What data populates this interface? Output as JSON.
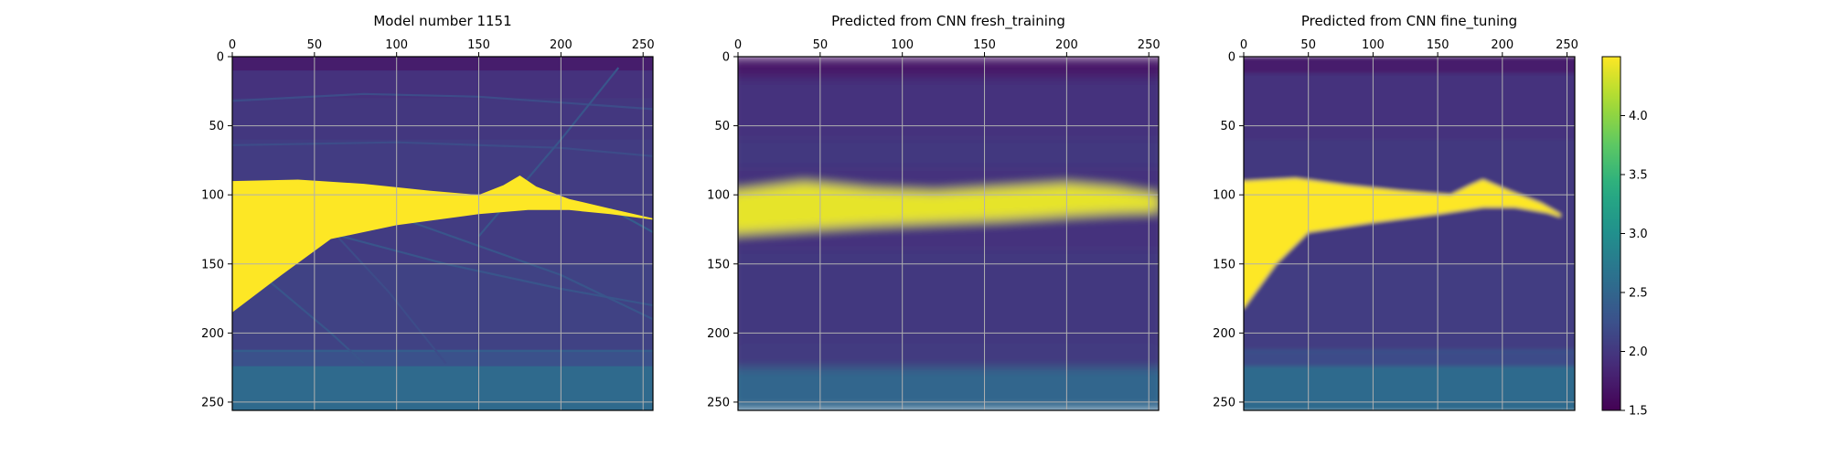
{
  "chart_data": [
    {
      "type": "heatmap",
      "title": "Model number 1151",
      "xlim": [
        0,
        256
      ],
      "ylim": [
        256,
        0
      ],
      "x_ticks": [
        0,
        50,
        100,
        150,
        200,
        250
      ],
      "y_ticks": [
        0,
        50,
        100,
        150,
        200,
        250
      ],
      "x_axis_position": "top",
      "y_axis_inverted": true,
      "grid": true,
      "colormap": "viridis",
      "color_range": [
        1.5,
        4.5
      ],
      "sharpness": "sharp",
      "body_value": 4.5,
      "background_layers": [
        {
          "depth": [
            0,
            10
          ],
          "value": 1.75
        },
        {
          "depth": [
            10,
            30
          ],
          "value": 1.95
        },
        {
          "depth": [
            30,
            60
          ],
          "value": 2.0
        },
        {
          "depth": [
            60,
            150
          ],
          "value": 2.05
        },
        {
          "depth": [
            150,
            212
          ],
          "value": 2.1
        },
        {
          "depth": [
            212,
            224
          ],
          "value": 2.25
        },
        {
          "depth": [
            224,
            256
          ],
          "value": 2.55
        }
      ],
      "body_top": [
        [
          0,
          90
        ],
        [
          40,
          89
        ],
        [
          80,
          92
        ],
        [
          120,
          97
        ],
        [
          150,
          100
        ],
        [
          165,
          93
        ],
        [
          175,
          86
        ],
        [
          185,
          94
        ],
        [
          205,
          103
        ],
        [
          230,
          110
        ],
        [
          256,
          117
        ]
      ],
      "body_bottom": [
        [
          0,
          185
        ],
        [
          30,
          158
        ],
        [
          60,
          132
        ],
        [
          100,
          122
        ],
        [
          150,
          114
        ],
        [
          180,
          111
        ],
        [
          205,
          111
        ],
        [
          230,
          114
        ],
        [
          256,
          118
        ]
      ],
      "interfaces": [
        {
          "points": [
            [
              0,
              32
            ],
            [
              80,
              27
            ],
            [
              150,
              29
            ],
            [
              256,
              38
            ]
          ],
          "value": 2.2
        },
        {
          "points": [
            [
              0,
              64
            ],
            [
              100,
              62
            ],
            [
              200,
              66
            ],
            [
              256,
              72
            ]
          ],
          "value": 2.2
        },
        {
          "points": [
            [
              0,
              213
            ],
            [
              256,
              213
            ]
          ],
          "value": 2.4
        },
        {
          "points": [
            [
              105,
              118
            ],
            [
              200,
              158
            ],
            [
              256,
              190
            ]
          ],
          "value": 2.3
        },
        {
          "points": [
            [
              60,
              128
            ],
            [
              130,
              150
            ],
            [
              200,
              168
            ],
            [
              256,
              180
            ]
          ],
          "value": 2.3
        },
        {
          "points": [
            [
              230,
              110
            ],
            [
              256,
              127
            ]
          ],
          "value": 2.4
        },
        {
          "points": [
            [
              20,
              160
            ],
            [
              60,
              200
            ],
            [
              80,
              222
            ]
          ],
          "value": 2.3
        },
        {
          "points": [
            [
              60,
              125
            ],
            [
              95,
              170
            ],
            [
              130,
              222
            ]
          ],
          "value": 2.2
        },
        {
          "points": [
            [
              150,
              130
            ],
            [
              200,
              60
            ],
            [
              235,
              8
            ]
          ],
          "value": 2.3
        }
      ]
    },
    {
      "type": "heatmap",
      "title": "Predicted from CNN fresh_training",
      "xlim": [
        0,
        256
      ],
      "ylim": [
        256,
        0
      ],
      "x_ticks": [
        0,
        50,
        100,
        150,
        200,
        250
      ],
      "y_ticks": [
        0,
        50,
        100,
        150,
        200,
        250
      ],
      "x_axis_position": "top",
      "y_axis_inverted": true,
      "grid": true,
      "colormap": "viridis",
      "color_range": [
        1.5,
        4.5
      ],
      "sharpness": "blurred",
      "body_value": 4.4,
      "background_layers": [
        {
          "depth": [
            0,
            15
          ],
          "value": 1.7
        },
        {
          "depth": [
            15,
            60
          ],
          "value": 1.95
        },
        {
          "depth": [
            60,
            80
          ],
          "value": 2.0
        },
        {
          "depth": [
            80,
            140
          ],
          "value": 1.95
        },
        {
          "depth": [
            140,
            225
          ],
          "value": 2.0
        },
        {
          "depth": [
            225,
            256
          ],
          "value": 2.5
        }
      ],
      "body_top": [
        [
          0,
          97
        ],
        [
          40,
          91
        ],
        [
          80,
          96
        ],
        [
          120,
          98
        ],
        [
          160,
          95
        ],
        [
          200,
          92
        ],
        [
          230,
          95
        ],
        [
          256,
          100
        ]
      ],
      "body_bottom": [
        [
          0,
          128
        ],
        [
          40,
          125
        ],
        [
          80,
          122
        ],
        [
          120,
          120
        ],
        [
          160,
          118
        ],
        [
          200,
          115
        ],
        [
          230,
          113
        ],
        [
          256,
          112
        ]
      ],
      "interfaces": [
        {
          "points": [
            [
              0,
              213
            ],
            [
              256,
              213
            ]
          ],
          "value": 2.2
        }
      ]
    },
    {
      "type": "heatmap",
      "title": "Predicted from CNN fine_tuning",
      "xlim": [
        0,
        256
      ],
      "ylim": [
        256,
        0
      ],
      "x_ticks": [
        0,
        50,
        100,
        150,
        200,
        250
      ],
      "y_ticks": [
        0,
        50,
        100,
        150,
        200,
        250
      ],
      "x_axis_position": "top",
      "y_axis_inverted": true,
      "grid": true,
      "colormap": "viridis",
      "color_range": [
        1.5,
        4.5
      ],
      "sharpness": "soft",
      "body_value": 4.5,
      "background_layers": [
        {
          "depth": [
            0,
            12
          ],
          "value": 1.75
        },
        {
          "depth": [
            12,
            60
          ],
          "value": 1.95
        },
        {
          "depth": [
            60,
            150
          ],
          "value": 2.0
        },
        {
          "depth": [
            150,
            212
          ],
          "value": 2.05
        },
        {
          "depth": [
            212,
            224
          ],
          "value": 2.2
        },
        {
          "depth": [
            224,
            256
          ],
          "value": 2.55
        }
      ],
      "body_top": [
        [
          0,
          90
        ],
        [
          40,
          88
        ],
        [
          80,
          93
        ],
        [
          120,
          97
        ],
        [
          160,
          100
        ],
        [
          175,
          93
        ],
        [
          185,
          89
        ],
        [
          205,
          97
        ],
        [
          230,
          106
        ],
        [
          245,
          114
        ]
      ],
      "body_bottom": [
        [
          0,
          182
        ],
        [
          25,
          150
        ],
        [
          50,
          127
        ],
        [
          100,
          120
        ],
        [
          150,
          114
        ],
        [
          185,
          109
        ],
        [
          210,
          109
        ],
        [
          235,
          113
        ],
        [
          245,
          116
        ]
      ],
      "interfaces": [
        {
          "points": [
            [
              0,
              213
            ],
            [
              256,
              213
            ]
          ],
          "value": 2.3
        }
      ]
    }
  ],
  "colorbar": {
    "range": [
      1.5,
      4.5
    ],
    "ticks": [
      1.5,
      2.0,
      2.5,
      3.0,
      3.5,
      4.0
    ]
  }
}
